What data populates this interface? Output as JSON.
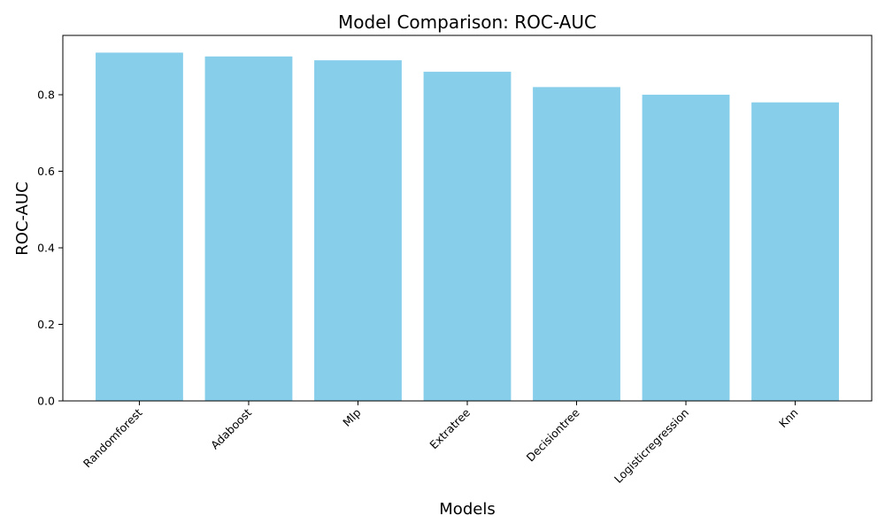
{
  "chart_data": {
    "type": "bar",
    "title": "Model Comparison: ROC-AUC",
    "xlabel": "Models",
    "ylabel": "ROC-AUC",
    "categories": [
      "Randomforest",
      "Adaboost",
      "Mlp",
      "Extratree",
      "Decisiontree",
      "Logisticregression",
      "Knn"
    ],
    "values": [
      0.91,
      0.9,
      0.89,
      0.86,
      0.82,
      0.8,
      0.78
    ],
    "ylim": [
      0,
      0.955
    ],
    "yticks": [
      0.0,
      0.2,
      0.4,
      0.6,
      0.8
    ],
    "ytick_labels": [
      "0.0",
      "0.2",
      "0.4",
      "0.6",
      "0.8"
    ],
    "bar_color": "#87ceeb",
    "grid": false,
    "legend": "none",
    "xtick_rotation_deg": 45
  }
}
